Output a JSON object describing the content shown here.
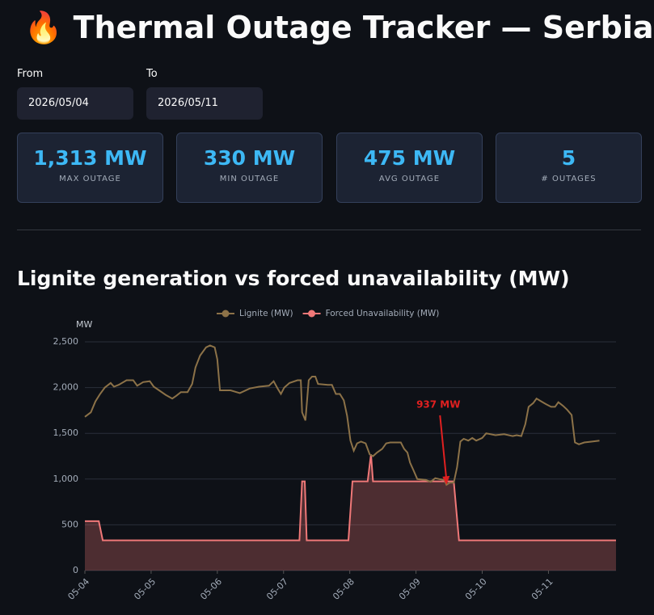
{
  "header": {
    "icon": "🔥",
    "title": "Thermal Outage Tracker — Serbia"
  },
  "date_range": {
    "from_label": "From",
    "from_value": "2026/05/04",
    "to_label": "To",
    "to_value": "2026/05/11"
  },
  "metrics": [
    {
      "value": "1,313 MW",
      "label": "MAX OUTAGE"
    },
    {
      "value": "330 MW",
      "label": "MIN OUTAGE"
    },
    {
      "value": "475 MW",
      "label": "AVG OUTAGE"
    },
    {
      "value": "5",
      "label": "# OUTAGES"
    }
  ],
  "chart_data": {
    "type": "line",
    "title": "Lignite generation vs forced unavailability (MW)",
    "y_label": "MW",
    "series": [
      {
        "name": "Lignite (MW)",
        "color": "#8c7248",
        "x": [
          0,
          0.09,
          0.16,
          0.23,
          0.3,
          0.39,
          0.44,
          0.51,
          0.63,
          0.73,
          0.79,
          0.88,
          0.98,
          1.04,
          1.12,
          1.22,
          1.32,
          1.38,
          1.45,
          1.55,
          1.62,
          1.67,
          1.74,
          1.83,
          1.89,
          1.96,
          2,
          2.04,
          2.2,
          2.34,
          2.49,
          2.63,
          2.78,
          2.85,
          2.91,
          2.96,
          3.01,
          3.09,
          3.21,
          3.26,
          3.28,
          3.33,
          3.38,
          3.43,
          3.48,
          3.52,
          3.67,
          3.73,
          3.79,
          3.85,
          3.91,
          3.96,
          4.01,
          4.06,
          4.11,
          4.17,
          4.24,
          4.3,
          4.35,
          4.41,
          4.49,
          4.55,
          4.61,
          4.77,
          4.82,
          4.87,
          4.91,
          4.96,
          5.02,
          5.15,
          5.22,
          5.29,
          5.35,
          5.43,
          5.46,
          5.51,
          5.57,
          5.62,
          5.67,
          5.72,
          5.79,
          5.85,
          5.91,
          6,
          6.06,
          6.2,
          6.33,
          6.46,
          6.52,
          6.59,
          6.65,
          6.7,
          6.77,
          6.82,
          6.89,
          6.96,
          7.04,
          7.1,
          7.15,
          7.22,
          7.28,
          7.35,
          7.4,
          7.46,
          7.54,
          7.66,
          7.77
        ],
        "values": [
          1680,
          1730,
          1850,
          1930,
          2000,
          2050,
          2010,
          2030,
          2080,
          2080,
          2020,
          2060,
          2070,
          2010,
          1970,
          1920,
          1880,
          1910,
          1950,
          1950,
          2040,
          2220,
          2350,
          2440,
          2460,
          2440,
          2310,
          1970,
          1970,
          1940,
          1990,
          2010,
          2020,
          2070,
          1990,
          1930,
          2000,
          2050,
          2080,
          2080,
          1730,
          1640,
          2080,
          2120,
          2120,
          2040,
          2030,
          2030,
          1930,
          1930,
          1860,
          1690,
          1420,
          1310,
          1390,
          1410,
          1390,
          1270,
          1250,
          1290,
          1330,
          1390,
          1400,
          1400,
          1330,
          1290,
          1180,
          1100,
          1000,
          990,
          970,
          1010,
          1000,
          990,
          937,
          960,
          960,
          1130,
          1410,
          1440,
          1420,
          1450,
          1420,
          1450,
          1500,
          1480,
          1490,
          1470,
          1480,
          1470,
          1600,
          1790,
          1830,
          1880,
          1850,
          1820,
          1790,
          1790,
          1840,
          1800,
          1760,
          1700,
          1400,
          1380,
          1400,
          1410,
          1420
        ]
      },
      {
        "name": "Forced Unavailability (MW)",
        "color": "#f07878",
        "fill": true,
        "x": [
          0,
          0.21,
          0.27,
          3.24,
          3.28,
          3.32,
          3.35,
          3.98,
          4.04,
          4.27,
          4.32,
          4.35,
          5.57,
          5.65,
          8.02
        ],
        "values": [
          540,
          540,
          330,
          330,
          975,
          975,
          330,
          330,
          975,
          975,
          1270,
          975,
          975,
          330,
          330
        ]
      }
    ],
    "annotation": {
      "text": "937 MW",
      "x": 5.46,
      "y": 937,
      "color": "#e02020"
    },
    "xlim": [
      0,
      8.02
    ],
    "xticks": [
      {
        "value": 0,
        "label": "05-04"
      },
      {
        "value": 1,
        "label": "05-05"
      },
      {
        "value": 2,
        "label": "05-06"
      },
      {
        "value": 3,
        "label": "05-07"
      },
      {
        "value": 4,
        "label": "05-08"
      },
      {
        "value": 5,
        "label": "05-09"
      },
      {
        "value": 6,
        "label": "05-10"
      },
      {
        "value": 7,
        "label": "05-11"
      }
    ],
    "ylim": [
      0,
      2620
    ],
    "yticks": [
      0,
      500,
      {
        "value": 1000,
        "label": "1,000"
      },
      {
        "value": 1500,
        "label": "1,500"
      },
      {
        "value": 2000,
        "label": "2,000"
      },
      {
        "value": 2500,
        "label": "2,500"
      }
    ],
    "grid": true,
    "legend": "top"
  }
}
